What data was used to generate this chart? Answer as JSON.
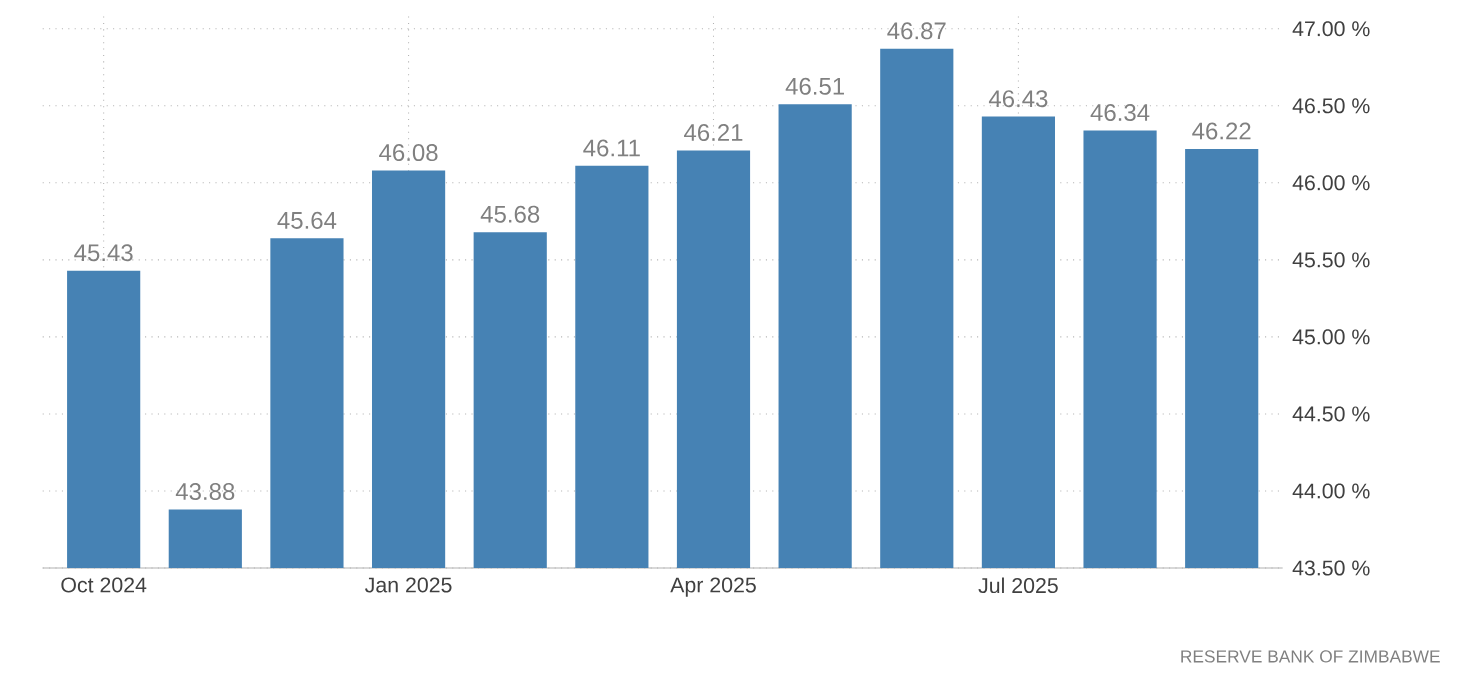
{
  "chart_data": {
    "type": "bar",
    "categories": [
      "Oct 2024",
      null,
      null,
      "Jan 2025",
      null,
      null,
      "Apr 2025",
      null,
      null,
      "Jul 2025",
      null,
      null
    ],
    "values": [
      45.43,
      43.88,
      45.64,
      46.08,
      45.68,
      46.11,
      46.21,
      46.51,
      46.87,
      46.43,
      46.34,
      46.22
    ],
    "color": "#4682b4",
    "data_labels": true,
    "grid": true,
    "ylim": [
      43.5,
      47.1
    ],
    "yticks": [
      {
        "value": 43.5,
        "label": "43.50 %"
      },
      {
        "value": 44,
        "label": "44.00 %"
      },
      {
        "value": 44.5,
        "label": "44.50 %"
      },
      {
        "value": 45,
        "label": "45.00 %"
      },
      {
        "value": 45.5,
        "label": "45.50 %"
      },
      {
        "value": 46,
        "label": "46.00 %"
      },
      {
        "value": 46.5,
        "label": "46.50 %"
      },
      {
        "value": 47,
        "label": "47.00 %"
      }
    ],
    "annotations": [
      "RESERVE BANK OF ZIMBABWE"
    ]
  }
}
